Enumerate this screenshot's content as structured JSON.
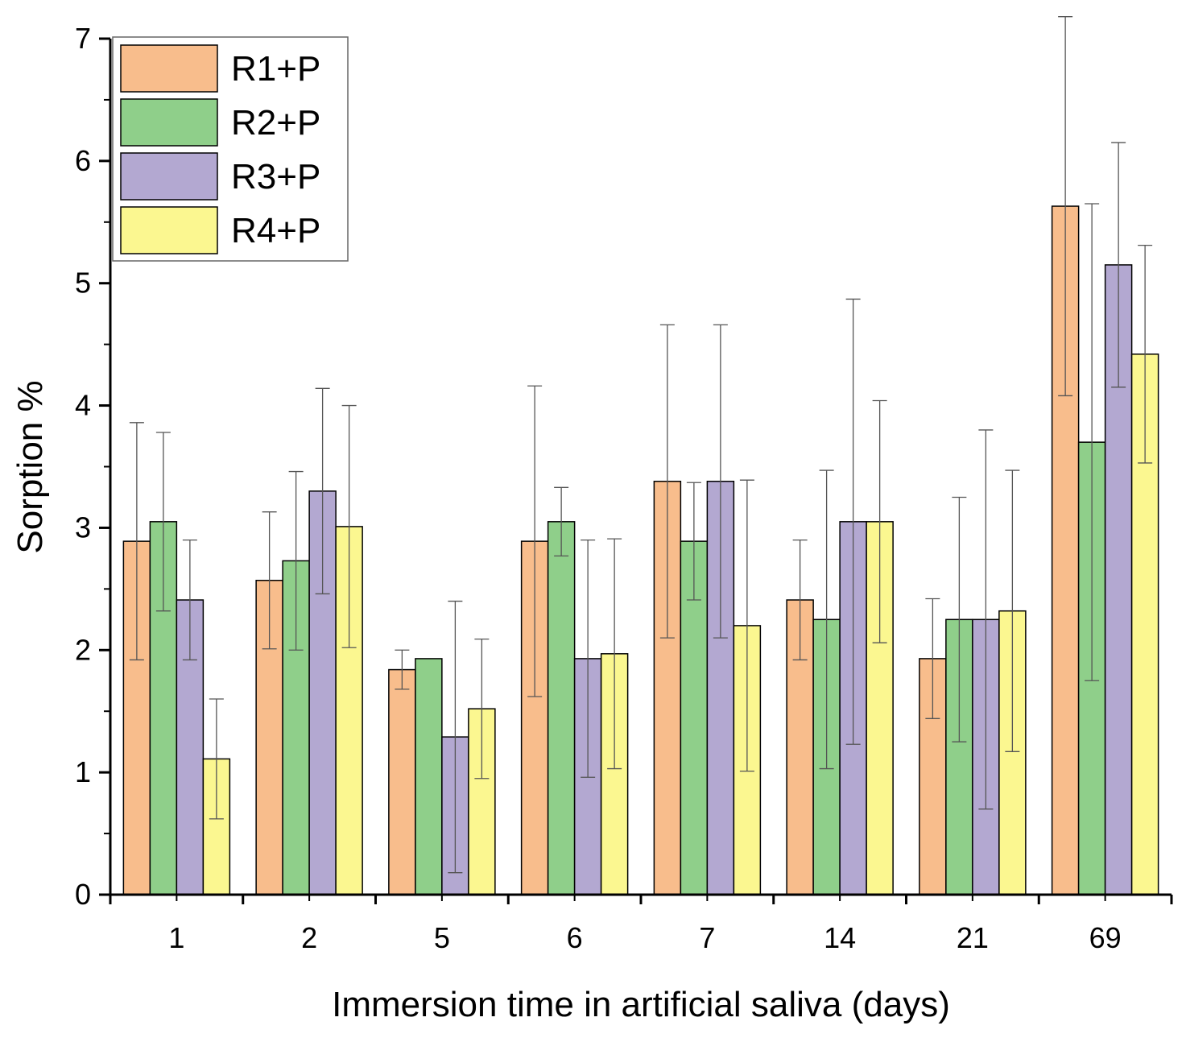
{
  "chart_data": {
    "type": "bar",
    "xlabel": "Immersion time in artificial saliva (days)",
    "ylabel": "Sorption %",
    "ylim": [
      0,
      7
    ],
    "yticks": [
      0,
      1,
      2,
      3,
      4,
      5,
      6,
      7
    ],
    "categories": [
      "1",
      "2",
      "5",
      "6",
      "7",
      "14",
      "21",
      "69"
    ],
    "legend_position": "top-left",
    "grid": false,
    "error_bars": true,
    "series": [
      {
        "name": "R1+P",
        "color": "#f8bd8c",
        "values": [
          2.89,
          2.57,
          1.84,
          2.89,
          3.38,
          2.41,
          1.93,
          5.63
        ],
        "errors": [
          0.97,
          0.56,
          0.16,
          1.27,
          1.28,
          0.49,
          0.49,
          1.55
        ]
      },
      {
        "name": "R2+P",
        "color": "#8fcf8a",
        "values": [
          3.05,
          2.73,
          1.93,
          3.05,
          2.89,
          2.25,
          2.25,
          3.7
        ],
        "errors": [
          0.73,
          0.73,
          0.0,
          0.28,
          0.48,
          1.22,
          1.0,
          1.95
        ]
      },
      {
        "name": "R3+P",
        "color": "#b3a8d1",
        "values": [
          2.41,
          3.3,
          1.29,
          1.93,
          3.38,
          3.05,
          2.25,
          5.15
        ],
        "errors": [
          0.49,
          0.84,
          1.11,
          0.97,
          1.28,
          1.82,
          1.55,
          1.0
        ]
      },
      {
        "name": "R4+P",
        "color": "#fbf790",
        "values": [
          1.11,
          3.01,
          1.52,
          1.97,
          2.2,
          3.05,
          2.32,
          4.42
        ],
        "errors": [
          0.49,
          0.99,
          0.57,
          0.94,
          1.19,
          0.99,
          1.15,
          0.89
        ]
      }
    ]
  }
}
